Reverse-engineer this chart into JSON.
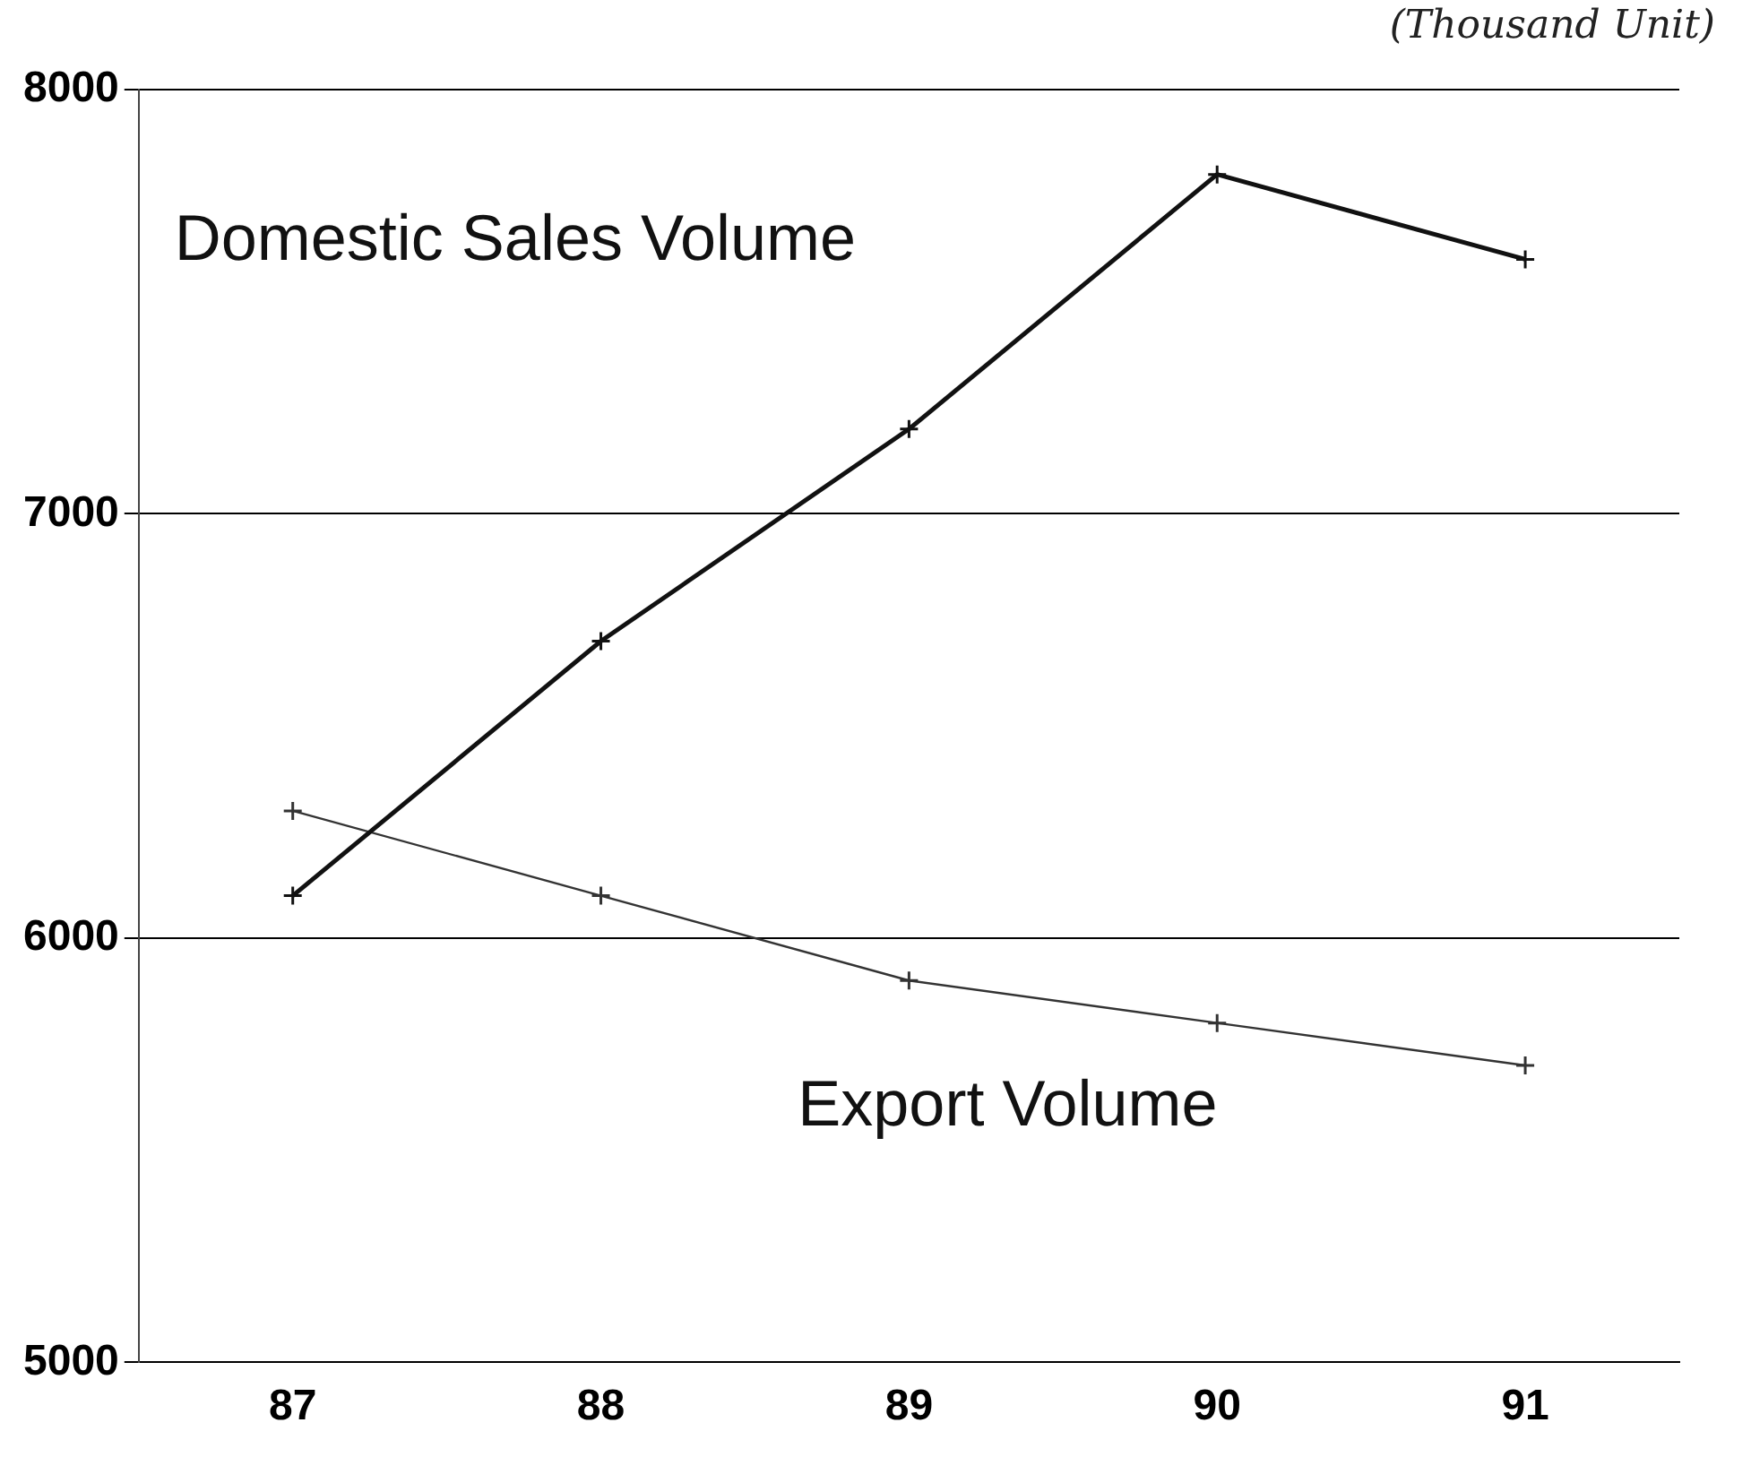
{
  "chart_data": {
    "type": "line",
    "categories": [
      "87",
      "88",
      "89",
      "90",
      "91"
    ],
    "series": [
      {
        "name": "Domestic Sales Volume",
        "color": "#111111",
        "values": [
          6100,
          6700,
          7200,
          7800,
          7600
        ]
      },
      {
        "name": "Export Volume",
        "color": "#333333",
        "values": [
          6300,
          6100,
          5900,
          5800,
          5700
        ]
      }
    ],
    "ylim": [
      5000,
      8000
    ],
    "yticks": [
      5000,
      6000,
      7000,
      8000
    ],
    "grid": "y",
    "legend": false,
    "marker": "cross",
    "line_style": "solid",
    "annotations": [
      "(Thousand Unit)"
    ]
  }
}
